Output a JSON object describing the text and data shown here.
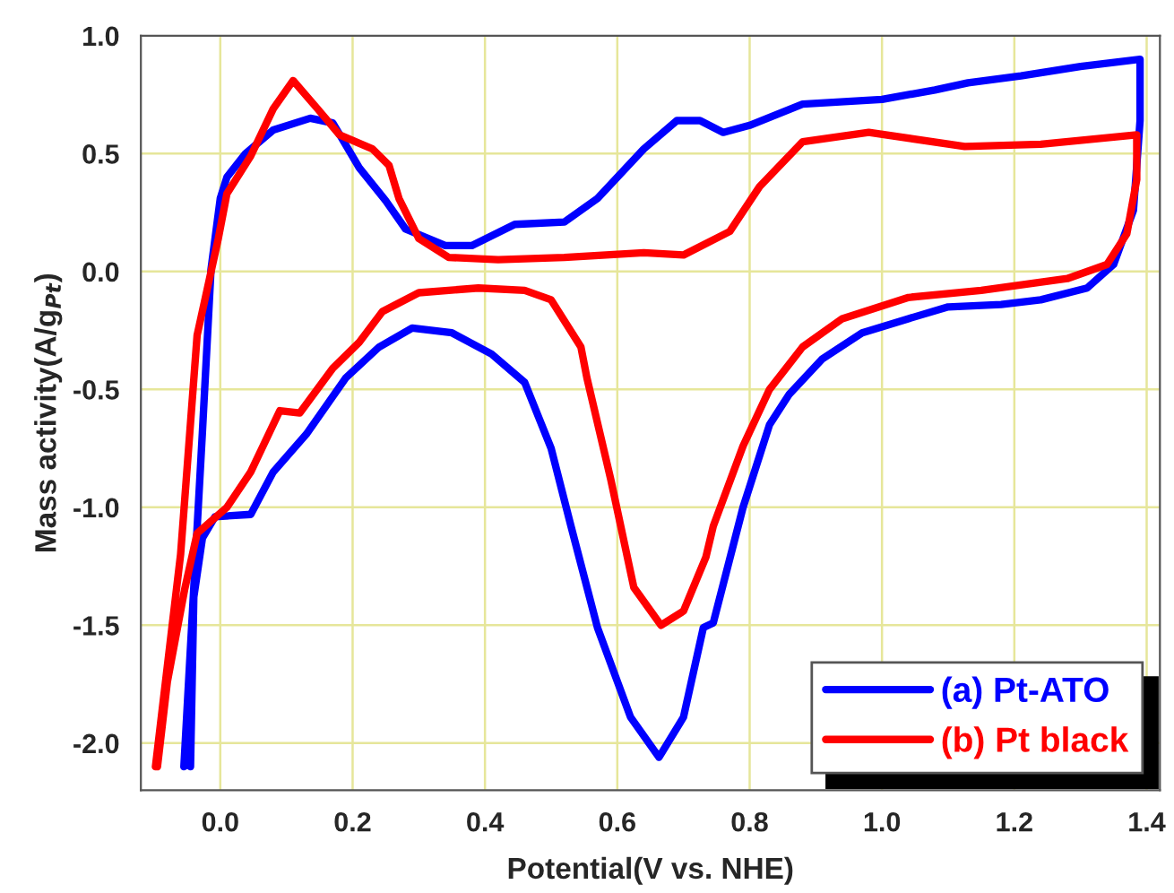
{
  "chart_data": {
    "type": "line",
    "xlabel": "Potential(V vs. NHE)",
    "ylabel": "Mass activity(A/g$_{Pt}$)",
    "xlim": [
      -0.12,
      1.42
    ],
    "ylim": [
      -2.2,
      1.0
    ],
    "xticks": [
      {
        "value": 0,
        "label": "0.0"
      },
      {
        "value": 0.2,
        "label": "0.2"
      },
      {
        "value": 0.4,
        "label": "0.4"
      },
      {
        "value": 0.6,
        "label": "0.6"
      },
      {
        "value": 0.8,
        "label": "0.8"
      },
      {
        "value": 1.0,
        "label": "1.0"
      },
      {
        "value": 1.2,
        "label": "1.2"
      },
      {
        "value": 1.4,
        "label": "1.4"
      }
    ],
    "yticks": [
      {
        "value": -2.0,
        "label": "-2.0"
      },
      {
        "value": -1.5,
        "label": "-1.5"
      },
      {
        "value": -1.0,
        "label": "-1.0"
      },
      {
        "value": -0.5,
        "label": "-0.5"
      },
      {
        "value": 0,
        "label": "0.0"
      },
      {
        "value": 0.5,
        "label": "0.5"
      },
      {
        "value": 1.0,
        "label": "1.0"
      }
    ],
    "grid": true,
    "legend": "bottom right",
    "marker": "none",
    "line_style": "solid",
    "series": [
      {
        "name": "(a) Pt-ATO",
        "color": "#0000ff",
        "x": [
          -0.055,
          -0.027,
          -0.014,
          0.0,
          0.01,
          0.038,
          0.08,
          0.136,
          0.17,
          0.21,
          0.25,
          0.28,
          0.34,
          0.38,
          0.445,
          0.52,
          0.57,
          0.64,
          0.69,
          0.725,
          0.76,
          0.8,
          0.88,
          1.0,
          1.08,
          1.13,
          1.21,
          1.3,
          1.39,
          1.39,
          1.38,
          1.35,
          1.31,
          1.24,
          1.18,
          1.1,
          1.04,
          0.97,
          0.91,
          0.86,
          0.83,
          0.79,
          0.745,
          0.73,
          0.7,
          0.663,
          0.62,
          0.57,
          0.53,
          0.5,
          0.46,
          0.41,
          0.35,
          0.29,
          0.24,
          0.19,
          0.13,
          0.08,
          0.046,
          -0.008,
          -0.027,
          -0.04,
          -0.045
        ],
        "values": [
          -2.1,
          -0.68,
          0.01,
          0.31,
          0.4,
          0.5,
          0.6,
          0.65,
          0.63,
          0.44,
          0.3,
          0.18,
          0.11,
          0.11,
          0.2,
          0.21,
          0.31,
          0.52,
          0.64,
          0.64,
          0.59,
          0.62,
          0.71,
          0.73,
          0.77,
          0.8,
          0.83,
          0.87,
          0.9,
          0.64,
          0.26,
          0.03,
          -0.07,
          -0.12,
          -0.14,
          -0.15,
          -0.2,
          -0.26,
          -0.37,
          -0.52,
          -0.65,
          -1.0,
          -1.49,
          -1.51,
          -1.89,
          -2.06,
          -1.89,
          -1.51,
          -1.08,
          -0.75,
          -0.47,
          -0.35,
          -0.26,
          -0.24,
          -0.32,
          -0.45,
          -0.69,
          -0.85,
          -1.03,
          -1.04,
          -1.13,
          -1.38,
          -2.1
        ]
      },
      {
        "name": "(b) Pt black",
        "color": "#ff0000",
        "x": [
          -0.098,
          -0.06,
          -0.035,
          -0.003,
          0.01,
          0.046,
          0.08,
          0.11,
          0.147,
          0.18,
          0.23,
          0.255,
          0.27,
          0.3,
          0.345,
          0.42,
          0.52,
          0.64,
          0.7,
          0.77,
          0.815,
          0.88,
          0.98,
          1.125,
          1.24,
          1.385,
          1.385,
          1.37,
          1.34,
          1.28,
          1.15,
          1.04,
          0.94,
          0.88,
          0.83,
          0.79,
          0.745,
          0.734,
          0.7,
          0.666,
          0.625,
          0.59,
          0.554,
          0.545,
          0.5,
          0.46,
          0.39,
          0.3,
          0.245,
          0.21,
          0.17,
          0.12,
          0.09,
          0.046,
          0.01,
          -0.035,
          -0.054,
          -0.08,
          -0.095
        ],
        "values": [
          -2.1,
          -1.2,
          -0.27,
          0.14,
          0.33,
          0.49,
          0.69,
          0.81,
          0.69,
          0.58,
          0.52,
          0.45,
          0.31,
          0.14,
          0.06,
          0.05,
          0.06,
          0.08,
          0.07,
          0.17,
          0.36,
          0.55,
          0.59,
          0.53,
          0.54,
          0.58,
          0.39,
          0.16,
          0.03,
          -0.03,
          -0.08,
          -0.11,
          -0.2,
          -0.32,
          -0.5,
          -0.74,
          -1.08,
          -1.21,
          -1.44,
          -1.5,
          -1.34,
          -0.88,
          -0.45,
          -0.32,
          -0.12,
          -0.08,
          -0.07,
          -0.09,
          -0.17,
          -0.3,
          -0.41,
          -0.6,
          -0.59,
          -0.85,
          -1.0,
          -1.11,
          -1.35,
          -1.74,
          -2.1
        ]
      }
    ]
  }
}
